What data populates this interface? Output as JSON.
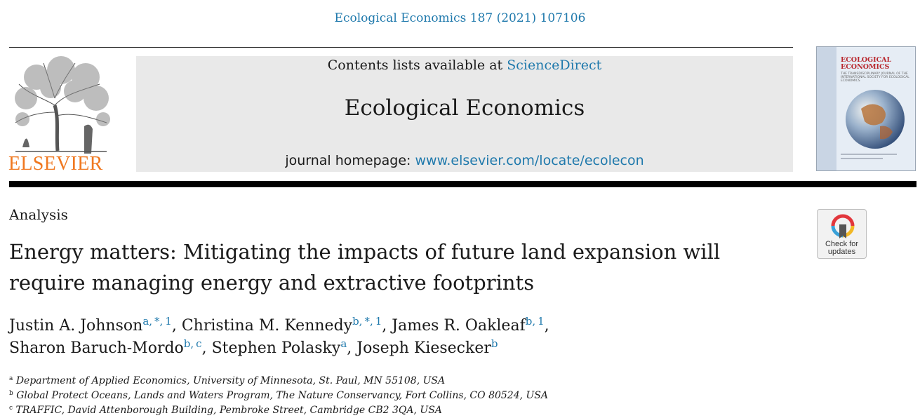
{
  "citation": "Ecological Economics 187 (2021) 107106",
  "publisher": {
    "logo_text": "ELSEVIER",
    "logo_color": "#f07820"
  },
  "banner": {
    "contents_prefix": "Contents lists available at",
    "contents_link": "ScienceDirect",
    "journal_title": "Ecological Economics",
    "homepage_prefix": "journal homepage:",
    "homepage_link": "www.elsevier.com/locate/ecolecon"
  },
  "cover": {
    "title_line1": "ECOLOGICAL",
    "title_line2": "ECONOMICS",
    "subtitle": "THE TRANSDISCIPLINARY JOURNAL OF THE INTERNATIONAL SOCIETY FOR ECOLOGICAL ECONOMICS"
  },
  "article": {
    "section": "Analysis",
    "title_line1": "Energy matters: Mitigating the impacts of future land expansion will",
    "title_line2": "require managing energy and extractive footprints"
  },
  "badge": {
    "line1": "Check for",
    "line2": "updates"
  },
  "authors": [
    {
      "name": "Justin A. Johnson",
      "sup": "a, *, 1",
      "sep": ", "
    },
    {
      "name": "Christina M. Kennedy",
      "sup": "b, *, 1",
      "sep": ", "
    },
    {
      "name": "James R. Oakleaf",
      "sup": "b, 1",
      "sep": ","
    },
    {
      "name": "Sharon Baruch-Mordo",
      "sup": "b, c",
      "sep": ", "
    },
    {
      "name": "Stephen Polasky",
      "sup": "a",
      "sep": ", "
    },
    {
      "name": "Joseph Kiesecker",
      "sup": "b",
      "sep": ""
    }
  ],
  "affiliations": [
    {
      "mark": "a",
      "text": "Department of Applied Economics, University of Minnesota, St. Paul, MN 55108, USA"
    },
    {
      "mark": "b",
      "text": "Global Protect Oceans, Lands and Waters Program, The Nature Conservancy, Fort Collins, CO 80524, USA"
    },
    {
      "mark": "c",
      "text": "TRAFFIC, David Attenborough Building, Pembroke Street, Cambridge CB2 3QA, USA"
    }
  ],
  "colors": {
    "link": "#1f79ac",
    "banner_bg": "#e9e9e9"
  }
}
